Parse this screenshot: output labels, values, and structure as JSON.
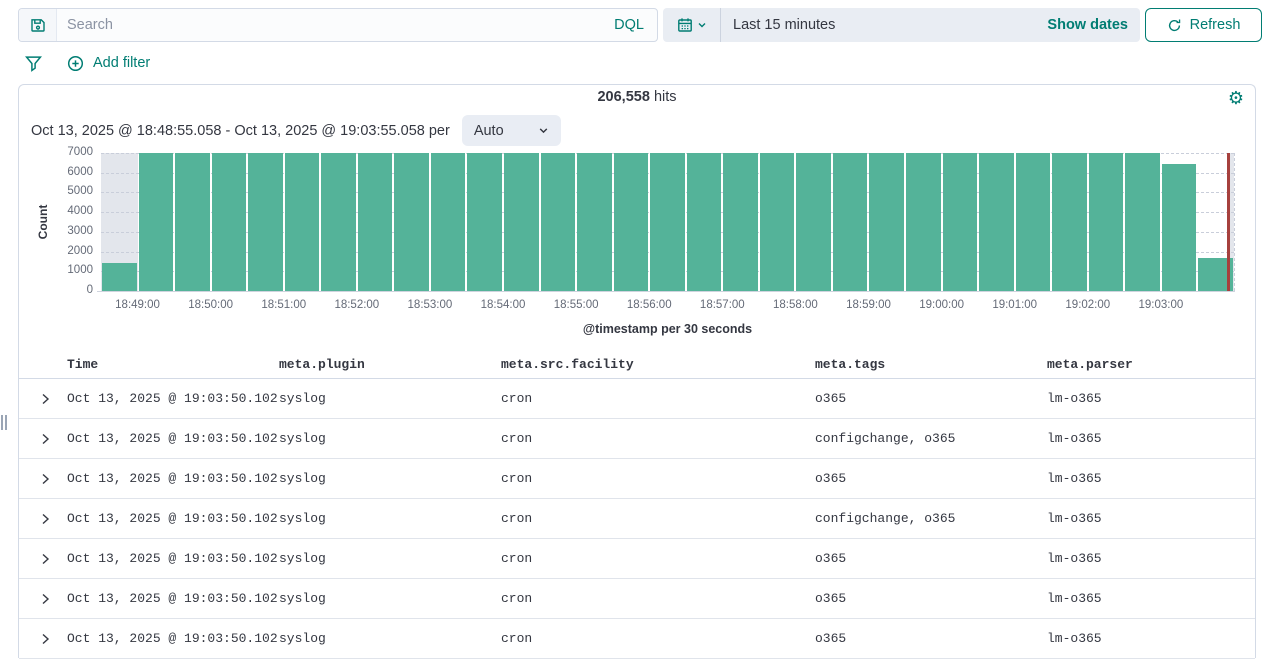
{
  "colors": {
    "accent": "#017D73",
    "bar": "#54B399",
    "now_marker": "#A6403D",
    "partial_fill": "#E3E6EC",
    "text": "#343741",
    "muted_text": "#646A77",
    "border": "#D3DAE6"
  },
  "topbar": {
    "search_placeholder": "Search",
    "search_value": "",
    "dql_label": "DQL",
    "timerange_label": "Last 15 minutes",
    "show_dates_label": "Show dates",
    "refresh_label": "Refresh"
  },
  "icons": {
    "save": "floppy-disk",
    "calendar": "calendar",
    "refresh": "circular-arrow",
    "filter": "funnel",
    "add": "plus-in-circle",
    "gear_glyph": "⚙",
    "expand": "chevron-right"
  },
  "filter_bar": {
    "add_filter_label": "Add filter"
  },
  "panel": {
    "hits_value": "206,558",
    "hits_label": "hits",
    "time_range_text": "Oct 13, 2025 @ 18:48:55.058 - Oct 13, 2025 @ 19:03:55.058 per",
    "interval_value": "Auto"
  },
  "chart_data": {
    "type": "bar",
    "title": "",
    "xlabel": "@timestamp per 30 seconds",
    "ylabel": "Count",
    "ylim": [
      0,
      7000
    ],
    "grid": "dashed-horizontal",
    "bucket_seconds": 30,
    "y_ticks": [
      0,
      1000,
      2000,
      3000,
      4000,
      5000,
      6000,
      7000
    ],
    "x_tick_labels": [
      "18:49:00",
      "18:50:00",
      "18:51:00",
      "18:52:00",
      "18:53:00",
      "18:54:00",
      "18:55:00",
      "18:56:00",
      "18:57:00",
      "18:58:00",
      "18:59:00",
      "19:00:00",
      "19:01:00",
      "19:02:00",
      "19:03:00"
    ],
    "values": [
      1400,
      7000,
      7000,
      7000,
      7000,
      7000,
      7000,
      7000,
      7000,
      7000,
      7000,
      7000,
      7000,
      7000,
      7000,
      7000,
      7000,
      7000,
      7000,
      7000,
      7000,
      7000,
      7000,
      7000,
      7000,
      7000,
      7000,
      7000,
      7000,
      6450,
      1700
    ],
    "first_bucket_partial": true,
    "last_bucket_partial": true,
    "now_marker_fraction_in_last_bucket": 0.8
  },
  "table": {
    "columns": [
      "Time",
      "meta.plugin",
      "meta.src.facility",
      "meta.tags",
      "meta.parser"
    ],
    "rows": [
      {
        "time": "Oct 13, 2025 @ 19:03:50.102",
        "plugin": "syslog",
        "facility": "cron",
        "tags": "o365",
        "parser": "lm-o365"
      },
      {
        "time": "Oct 13, 2025 @ 19:03:50.102",
        "plugin": "syslog",
        "facility": "cron",
        "tags": "configchange, o365",
        "parser": "lm-o365"
      },
      {
        "time": "Oct 13, 2025 @ 19:03:50.102",
        "plugin": "syslog",
        "facility": "cron",
        "tags": "o365",
        "parser": "lm-o365"
      },
      {
        "time": "Oct 13, 2025 @ 19:03:50.102",
        "plugin": "syslog",
        "facility": "cron",
        "tags": "configchange, o365",
        "parser": "lm-o365"
      },
      {
        "time": "Oct 13, 2025 @ 19:03:50.102",
        "plugin": "syslog",
        "facility": "cron",
        "tags": "o365",
        "parser": "lm-o365"
      },
      {
        "time": "Oct 13, 2025 @ 19:03:50.102",
        "plugin": "syslog",
        "facility": "cron",
        "tags": "o365",
        "parser": "lm-o365"
      },
      {
        "time": "Oct 13, 2025 @ 19:03:50.102",
        "plugin": "syslog",
        "facility": "cron",
        "tags": "o365",
        "parser": "lm-o365"
      }
    ]
  }
}
